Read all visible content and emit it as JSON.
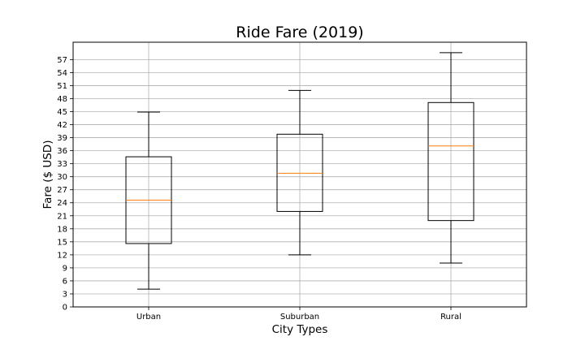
{
  "chart_data": {
    "type": "box",
    "title": "Ride Fare (2019)",
    "xlabel": "City Types",
    "ylabel": "Fare ($ USD)",
    "categories": [
      "Urban",
      "Suburban",
      "Rural"
    ],
    "ylim": [
      0,
      61
    ],
    "yticks": [
      0,
      3,
      6,
      9,
      12,
      15,
      18,
      21,
      24,
      27,
      30,
      33,
      36,
      39,
      42,
      45,
      48,
      51,
      54,
      57
    ],
    "grid": true,
    "boxes": [
      {
        "name": "Urban",
        "whisker_low": 4.1,
        "q1": 14.6,
        "median": 24.6,
        "q3": 34.6,
        "whisker_high": 44.9
      },
      {
        "name": "Suburban",
        "whisker_low": 12.0,
        "q1": 22.0,
        "median": 30.8,
        "q3": 39.8,
        "whisker_high": 49.9
      },
      {
        "name": "Rural",
        "whisker_low": 10.1,
        "q1": 19.9,
        "median": 37.1,
        "q3": 47.1,
        "whisker_high": 58.6
      }
    ],
    "colors": {
      "box": "#000000",
      "median": "#ff7f0e",
      "grid": "#b0b0b0"
    }
  }
}
